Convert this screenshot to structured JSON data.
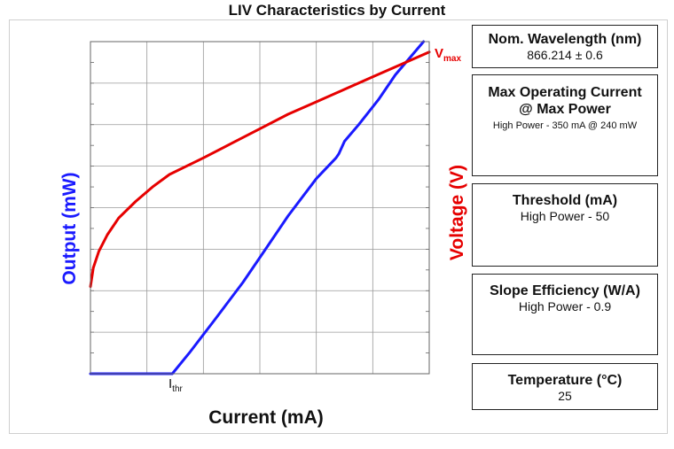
{
  "title": "LIV Characteristics by Current",
  "axes": {
    "y_left_label": "Output (mW)",
    "y_right_label": "Voltage (V)",
    "x_label": "Current (mA)"
  },
  "annotations": {
    "vmax_main": "V",
    "vmax_sub": "max",
    "ithr_main": "I",
    "ithr_sub": "thr"
  },
  "colors": {
    "output": "#1a1aff",
    "voltage": "#e60000",
    "grid": "#999999"
  },
  "specs": {
    "wavelength": {
      "title": "Nom. Wavelength (nm)",
      "value": "866.214 ± 0.6"
    },
    "max_current": {
      "title_line1": "Max Operating Current",
      "title_line2": "@ Max Power",
      "value": "High Power - 350 mA @ 240 mW"
    },
    "threshold": {
      "title": "Threshold (mA)",
      "value": "High Power - 50"
    },
    "slope": {
      "title": "Slope Efficiency (W/A)",
      "value": "High Power - 0.9"
    },
    "temperature": {
      "title": "Temperature (°C)",
      "value": "25"
    }
  },
  "chart_data": {
    "type": "line",
    "x_range": [
      0,
      6
    ],
    "y_left_range": [
      0,
      8
    ],
    "y_right_range": [
      0,
      8
    ],
    "grid": true,
    "series": [
      {
        "name": "Output (mW)",
        "axis": "left",
        "color": "#1a1aff",
        "x": [
          0,
          1.45,
          1.75,
          2.2,
          2.7,
          3.05,
          3.5,
          4.0,
          4.35,
          4.4,
          4.5,
          4.75,
          5.1,
          5.4,
          5.9
        ],
        "y": [
          0,
          0,
          0.5,
          1.3,
          2.2,
          2.9,
          3.8,
          4.7,
          5.2,
          5.3,
          5.6,
          6.0,
          6.6,
          7.2,
          8.0
        ]
      },
      {
        "name": "Voltage (V)",
        "axis": "right",
        "color": "#e60000",
        "x": [
          0,
          0.05,
          0.15,
          0.3,
          0.5,
          0.8,
          1.1,
          1.4,
          2.0,
          2.5,
          3.0,
          3.5,
          4.0,
          4.5,
          5.0,
          5.5,
          6.0
        ],
        "y": [
          2.1,
          2.55,
          2.95,
          3.35,
          3.75,
          4.15,
          4.5,
          4.8,
          5.2,
          5.55,
          5.9,
          6.25,
          6.55,
          6.85,
          7.15,
          7.45,
          7.75
        ]
      }
    ]
  }
}
